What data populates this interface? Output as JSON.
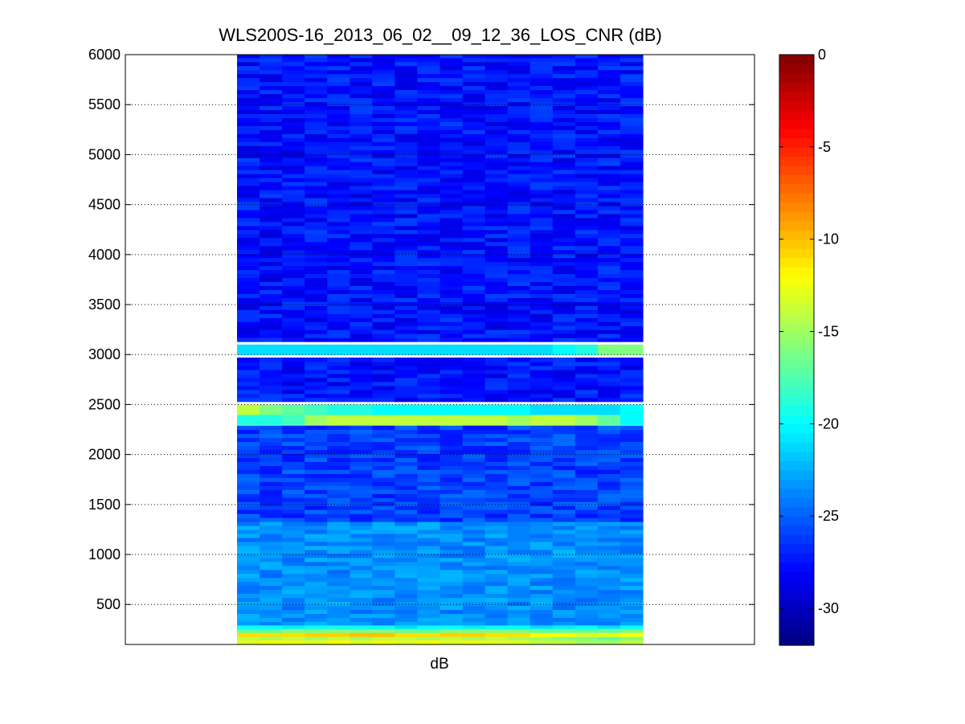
{
  "chart_data": {
    "type": "heatmap",
    "title": "WLS200S-16_2013_06_02__09_12_36_LOS_CNR (dB)",
    "xlabel": "dB",
    "ylabel": "",
    "ylim": [
      100,
      6000
    ],
    "yticks": [
      500,
      1000,
      1500,
      2000,
      2500,
      3000,
      3500,
      4000,
      4500,
      5000,
      5500,
      6000
    ],
    "grid": "y-dotted",
    "colormap": "jet",
    "clim": [
      -32,
      0
    ],
    "colorbar_ticks": [
      0,
      -5,
      -10,
      -15,
      -20,
      -25,
      -30
    ],
    "columns": 18,
    "bands": [
      {
        "y0": 100,
        "y1": 145,
        "values": [
          -13,
          -12,
          -12.5,
          -13,
          -12,
          -13,
          -12.5,
          -13,
          -12,
          -13,
          -12.5,
          -13,
          -13,
          -14,
          -14,
          -15,
          -15,
          -14
        ]
      },
      {
        "y0": 145,
        "y1": 180,
        "values": [
          -14,
          -15,
          -14,
          -15,
          -14,
          -15,
          -14,
          -14,
          -15,
          -14,
          -15,
          -14,
          -15,
          -15,
          -16,
          -16,
          -17,
          -16
        ]
      },
      {
        "y0": 180,
        "y1": 220,
        "values": [
          -11,
          -11,
          -11,
          -10.5,
          -10.5,
          -10,
          -10,
          -11,
          -11,
          -10.5,
          -10.5,
          -11,
          -11,
          -12,
          -12,
          -13,
          -12.5,
          -12
        ]
      },
      {
        "y0": 220,
        "y1": 260,
        "values": [
          -17,
          -17,
          -16,
          -16,
          -16,
          -16,
          -16,
          -17,
          -17,
          -16,
          -16,
          -16,
          -16,
          -17,
          -17,
          -17,
          -17,
          -16
        ]
      },
      {
        "y0": 260,
        "y1": 290,
        "values": [
          -20,
          -20,
          -20.5,
          -20,
          -19.5,
          -20,
          -20,
          -21,
          -20,
          -20,
          -20.5,
          -20,
          -20,
          -21,
          -20.5,
          -20,
          -21,
          -20
        ]
      },
      {
        "y0": 2300,
        "y1": 2400,
        "values": [
          -19,
          -19,
          -18,
          -15,
          -14,
          -14,
          -14,
          -14,
          -14,
          -14,
          -14,
          -14,
          -15,
          -14,
          -14,
          -15,
          -17,
          -20
        ]
      },
      {
        "y0": 2400,
        "y1": 2500,
        "values": [
          -14,
          -16,
          -17,
          -18,
          -19,
          -19,
          -20,
          -20,
          -20,
          -20,
          -20,
          -20,
          -20,
          -21,
          -21,
          -21,
          -21,
          -20
        ]
      },
      {
        "y0": 3000,
        "y1": 3100,
        "values": [
          -21,
          -21,
          -21,
          -21,
          -21,
          -21,
          -21,
          -21,
          -21,
          -21,
          -21,
          -21,
          -21,
          -21,
          -20,
          -19,
          -16,
          -16
        ]
      }
    ]
  }
}
